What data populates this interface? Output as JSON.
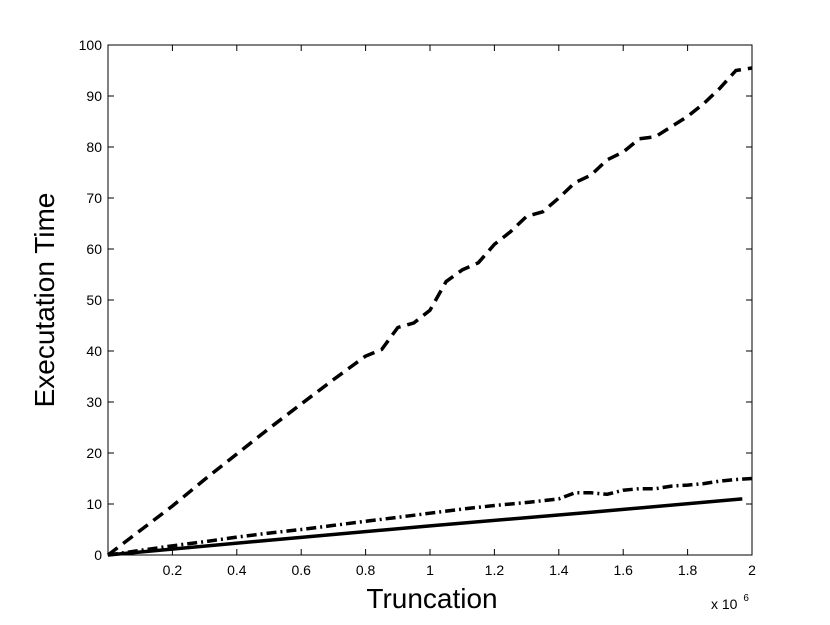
{
  "chart_data": {
    "type": "line",
    "title": "",
    "xlabel": "Truncation",
    "ylabel": "Executation Time",
    "x_multiplier_label": "x 10",
    "x_multiplier_exponent": "6",
    "xlim": [
      0,
      2
    ],
    "ylim": [
      0,
      100
    ],
    "xticks": [
      0.2,
      0.4,
      0.6,
      0.8,
      1,
      1.2,
      1.4,
      1.6,
      1.8,
      2
    ],
    "xtick_labels": [
      "0.2",
      "0.4",
      "0.6",
      "0.8",
      "1",
      "1.2",
      "1.4",
      "1.6",
      "1.8",
      "2"
    ],
    "yticks": [
      0,
      10,
      20,
      30,
      40,
      50,
      60,
      70,
      80,
      90,
      100
    ],
    "ytick_labels": [
      "0",
      "10",
      "20",
      "30",
      "40",
      "50",
      "60",
      "70",
      "80",
      "90",
      "100"
    ],
    "grid": false,
    "legend": false,
    "series": [
      {
        "style": "dashed",
        "color": "#000000",
        "x": [
          0,
          0.1,
          0.2,
          0.3,
          0.4,
          0.5,
          0.6,
          0.7,
          0.8,
          0.85,
          0.9,
          0.95,
          1.0,
          1.05,
          1.1,
          1.15,
          1.2,
          1.25,
          1.3,
          1.35,
          1.4,
          1.45,
          1.5,
          1.55,
          1.6,
          1.65,
          1.7,
          1.75,
          1.8,
          1.85,
          1.9,
          1.95,
          2.0
        ],
        "y": [
          0,
          4.8,
          9.6,
          14.8,
          19.8,
          24.8,
          29.6,
          34.4,
          39.0,
          40.3,
          44.6,
          45.5,
          48.0,
          53.6,
          55.9,
          57.3,
          60.9,
          63.4,
          66.4,
          67.3,
          70.0,
          73.0,
          74.5,
          77.5,
          79.0,
          81.6,
          82.0,
          84.0,
          86.0,
          88.5,
          91.5,
          95.0,
          95.5
        ]
      },
      {
        "style": "dash-dot",
        "color": "#000000",
        "x": [
          0,
          0.1,
          0.2,
          0.3,
          0.4,
          0.5,
          0.6,
          0.7,
          0.8,
          0.9,
          1.0,
          1.1,
          1.2,
          1.3,
          1.4,
          1.45,
          1.5,
          1.55,
          1.6,
          1.65,
          1.7,
          1.75,
          1.8,
          1.85,
          1.9,
          1.95,
          2.0
        ],
        "y": [
          0,
          0.9,
          1.8,
          2.6,
          3.5,
          4.3,
          5.0,
          5.8,
          6.6,
          7.4,
          8.2,
          9.0,
          9.7,
          10.3,
          11.0,
          12.2,
          12.2,
          11.9,
          12.7,
          13.0,
          13.0,
          13.5,
          13.7,
          14.0,
          14.5,
          14.8,
          15.0
        ]
      },
      {
        "style": "solid",
        "color": "#000000",
        "x": [
          0,
          0.5,
          1.0,
          1.5,
          1.97
        ],
        "y": [
          0,
          2.9,
          5.7,
          8.4,
          11.0
        ]
      }
    ]
  }
}
